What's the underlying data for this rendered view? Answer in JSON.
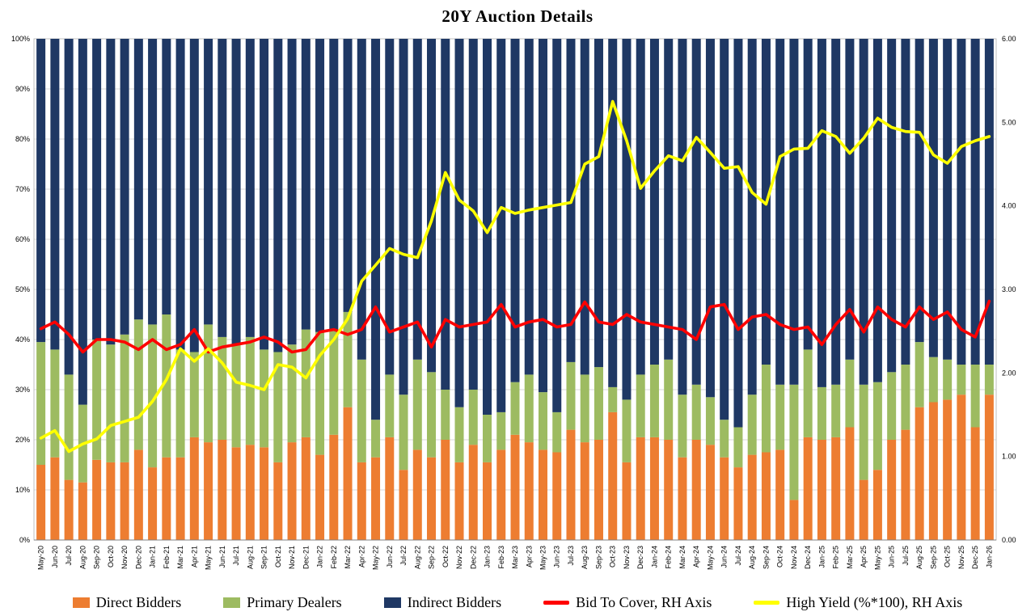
{
  "chart_data": {
    "type": "combo-stacked-bar-line",
    "title": "20Y Auction Details",
    "legend_position": "bottom",
    "grid": "horizontal",
    "colors": {
      "gridline": "#D9D9D9",
      "plot_border": "#BFBFBF",
      "axis_line": "#808080",
      "background": "#FFFFFF"
    },
    "left_axis": {
      "min": 0,
      "max": 100,
      "step": 10,
      "format": "percent",
      "ticks": [
        "0%",
        "10%",
        "20%",
        "30%",
        "40%",
        "50%",
        "60%",
        "70%",
        "80%",
        "90%",
        "100%"
      ]
    },
    "right_axis": {
      "min": 0,
      "max": 6,
      "step": 1,
      "ticks": [
        "0.00",
        "1.00",
        "2.00",
        "3.00",
        "4.00",
        "5.00",
        "6.00"
      ]
    },
    "categories": [
      "May-20",
      "Jun-20",
      "Jul-20",
      "Aug-20",
      "Sep-20",
      "Oct-20",
      "Nov-20",
      "Dec-20",
      "Jan-21",
      "Feb-21",
      "Mar-21",
      "Apr-21",
      "May-21",
      "Jun-21",
      "Jul-21",
      "Aug-21",
      "Sep-21",
      "Oct-21",
      "Nov-21",
      "Dec-21",
      "Jan-22",
      "Feb-22",
      "Mar-22",
      "Apr-22",
      "May-22",
      "Jun-22",
      "Jul-22",
      "Aug-22",
      "Sep-22",
      "Oct-22",
      "Nov-22",
      "Dec-22",
      "Jan-23",
      "Feb-23",
      "Mar-23",
      "Apr-23",
      "May-23",
      "Jun-23",
      "Jul-23",
      "Aug-23",
      "Sep-23",
      "Oct-23",
      "Nov-23",
      "Dec-23",
      "Jan-24",
      "Feb-24",
      "Mar-24",
      "Apr-24",
      "May-24",
      "Jun-24",
      "Jul-24",
      "Aug-24",
      "Sep-24",
      "Oct-24",
      "Nov-24",
      "Dec-24",
      "Jan-25",
      "Feb-25",
      "Mar-25",
      "Apr-25",
      "May-25",
      "Jun-25",
      "Jul-25",
      "Aug-25",
      "Sep-25",
      "Oct-25",
      "Nov-25",
      "Dec-25",
      "Jan-26"
    ],
    "bar_series": [
      {
        "name": "Direct Bidders",
        "axis": "left",
        "color": "#ED7D31",
        "values": [
          15,
          16.5,
          12,
          11.5,
          16,
          15.5,
          15.5,
          18,
          14.5,
          16.5,
          16.5,
          20.5,
          19.5,
          20,
          18.5,
          19,
          18.5,
          15.5,
          19.5,
          20.5,
          17,
          21,
          26.5,
          15.5,
          16.5,
          20.5,
          14,
          18,
          16.5,
          20,
          15.5,
          19,
          15.5,
          18,
          21,
          19.5,
          18,
          17.5,
          22,
          19.5,
          20,
          25.5,
          15.5,
          20.5,
          20.5,
          20,
          16.5,
          20,
          19,
          16.5,
          14.5,
          17,
          17.5,
          18,
          8,
          20.5,
          20,
          20.5,
          22.5,
          12,
          14,
          20,
          22,
          26.5,
          27.5,
          28,
          29,
          22.5,
          29
        ]
      },
      {
        "name": "Primary Dealers",
        "axis": "left",
        "color": "#9DBB61",
        "values": [
          24.5,
          21.5,
          21,
          15.5,
          24,
          23.5,
          25.5,
          26,
          28.5,
          28.5,
          21.5,
          17,
          23.5,
          20.5,
          20.5,
          21.5,
          19.5,
          22,
          19.5,
          21.5,
          24.5,
          21,
          19,
          20.5,
          7.5,
          12.5,
          15,
          18,
          17,
          10,
          11,
          11,
          9.5,
          7.5,
          10.5,
          13.5,
          11.5,
          8,
          13.5,
          13.5,
          14.5,
          5,
          12.5,
          12.5,
          14.5,
          16,
          12.5,
          11,
          9.5,
          7.5,
          8,
          12,
          17.5,
          13,
          23,
          17.5,
          10.5,
          10.5,
          13.5,
          19,
          17.5,
          13.5,
          13,
          13,
          9,
          8,
          6,
          12.5,
          6
        ]
      },
      {
        "name": "Indirect Bidders",
        "axis": "left",
        "color": "#1F3864",
        "values": [
          60.5,
          62,
          67,
          73,
          60,
          61,
          59,
          56,
          57,
          55,
          62,
          62.5,
          57,
          59.5,
          61,
          59.5,
          62,
          62.5,
          61,
          58,
          58.5,
          58,
          54.5,
          64,
          76,
          67,
          71,
          64,
          66.5,
          70,
          73.5,
          70,
          75,
          74.5,
          68.5,
          67,
          70.5,
          74.5,
          64.5,
          67,
          65.5,
          69.5,
          72,
          67,
          65,
          64,
          71,
          69,
          71.5,
          76,
          77.5,
          71,
          65,
          69,
          69,
          62,
          69.5,
          69,
          64,
          69,
          68.5,
          66.5,
          65,
          60.5,
          63.5,
          64,
          65,
          65,
          65
        ]
      }
    ],
    "line_series": [
      {
        "name": "Bid To Cover, RH Axis",
        "axis": "right",
        "color": "#FF0000",
        "values": [
          2.53,
          2.61,
          2.46,
          2.25,
          2.4,
          2.4,
          2.37,
          2.28,
          2.4,
          2.28,
          2.34,
          2.52,
          2.25,
          2.31,
          2.34,
          2.37,
          2.43,
          2.37,
          2.25,
          2.28,
          2.49,
          2.52,
          2.46,
          2.52,
          2.79,
          2.49,
          2.55,
          2.61,
          2.31,
          2.64,
          2.55,
          2.58,
          2.61,
          2.82,
          2.55,
          2.61,
          2.64,
          2.55,
          2.58,
          2.85,
          2.61,
          2.58,
          2.7,
          2.61,
          2.58,
          2.55,
          2.52,
          2.4,
          2.79,
          2.82,
          2.52,
          2.67,
          2.7,
          2.58,
          2.52,
          2.55,
          2.34,
          2.58,
          2.76,
          2.49,
          2.79,
          2.64,
          2.55,
          2.79,
          2.64,
          2.73,
          2.52,
          2.43,
          2.86
        ]
      },
      {
        "name": "High Yield (%*100), RH Axis",
        "axis": "right",
        "color": "#FFFF00",
        "values": [
          1.22,
          1.31,
          1.06,
          1.15,
          1.21,
          1.37,
          1.42,
          1.47,
          1.66,
          1.92,
          2.29,
          2.14,
          2.29,
          2.12,
          1.89,
          1.85,
          1.8,
          2.1,
          2.07,
          1.94,
          2.21,
          2.4,
          2.65,
          3.1,
          3.29,
          3.49,
          3.42,
          3.38,
          3.82,
          4.4,
          4.07,
          3.94,
          3.68,
          3.98,
          3.91,
          3.95,
          3.98,
          4.01,
          4.04,
          4.5,
          4.59,
          5.25,
          4.78,
          4.21,
          4.42,
          4.6,
          4.54,
          4.82,
          4.64,
          4.45,
          4.47,
          4.16,
          4.02,
          4.59,
          4.68,
          4.69,
          4.9,
          4.83,
          4.63,
          4.81,
          5.05,
          4.94,
          4.89,
          4.88,
          4.61,
          4.51,
          4.71,
          4.78,
          4.83
        ]
      }
    ]
  }
}
